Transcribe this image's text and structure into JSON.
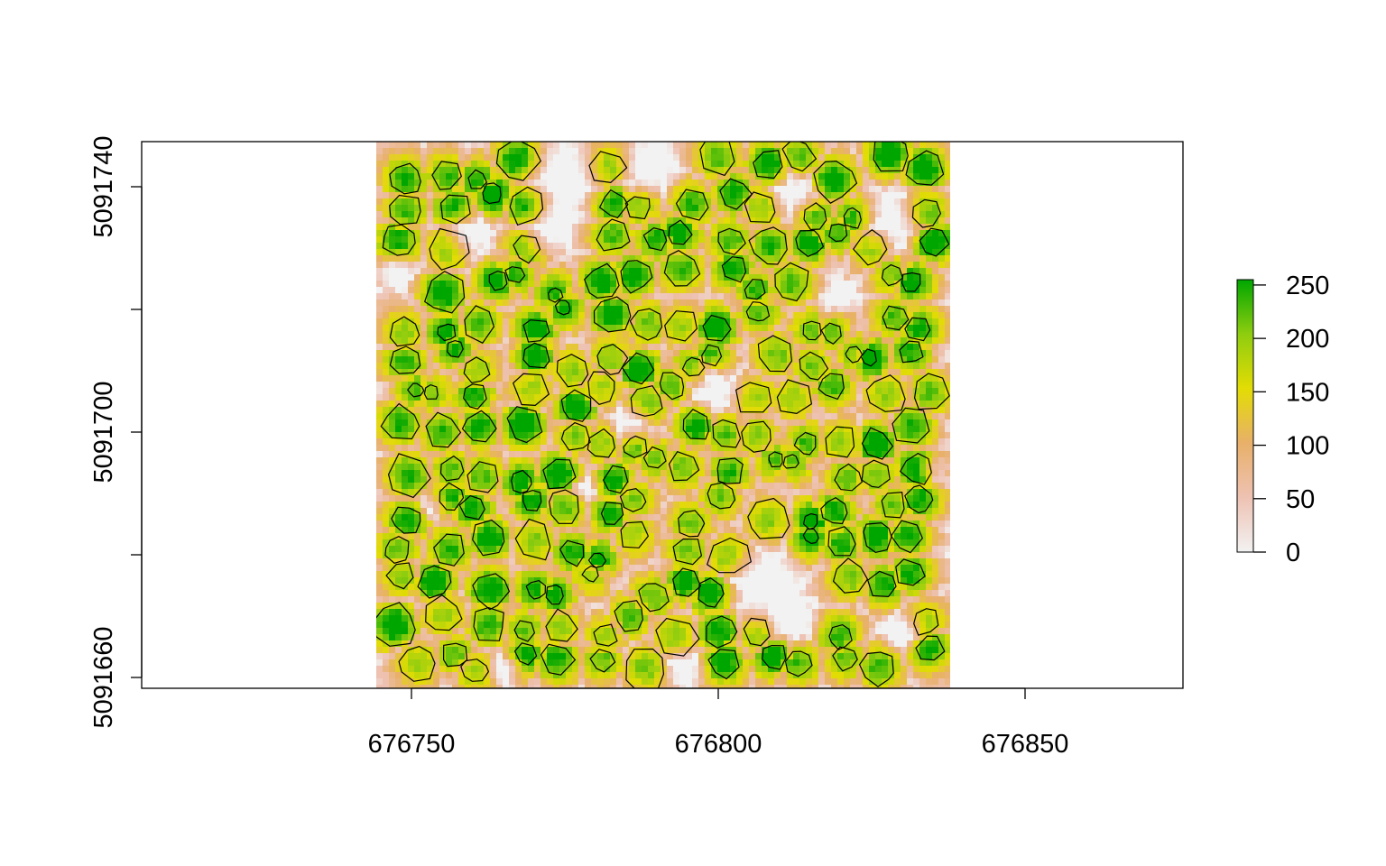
{
  "chart_data": {
    "type": "heatmap",
    "title": "",
    "xlabel": "",
    "ylabel": "",
    "xlim": [
      676712,
      676881
    ],
    "ylim": [
      5091658,
      5091747
    ],
    "raster_extent": {
      "x": [
        676750.5,
        676839.5
      ],
      "y": [
        5091658.5,
        5091747.5
      ]
    },
    "x_ticks": [
      676750,
      676800,
      676850
    ],
    "x_tick_labels": [
      "676750",
      "676800",
      "676850"
    ],
    "y_ticks": [
      5091660,
      5091680,
      5091700,
      5091720,
      5091740
    ],
    "y_tick_labels": [
      "5091660",
      "",
      "5091700",
      "",
      "5091740"
    ],
    "legend": {
      "position": "right",
      "range": [
        0,
        255
      ],
      "ticks": [
        0,
        50,
        100,
        150,
        200,
        250
      ],
      "tick_labels": [
        "0",
        "50",
        "100",
        "150",
        "200",
        "250"
      ]
    },
    "color_ramp": [
      "#f2f2f2",
      "#eec2b3",
      "#e8b06a",
      "#e3dc05",
      "#8fcd0f",
      "#00a600"
    ],
    "overlay": "tree crown polygons (black outlines)"
  }
}
